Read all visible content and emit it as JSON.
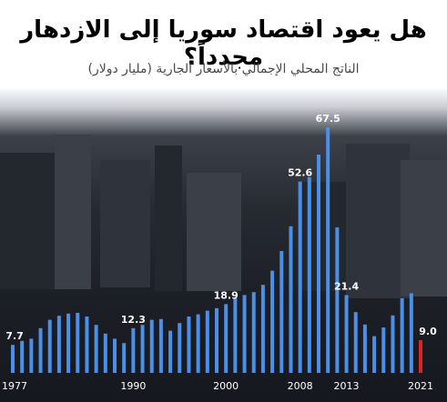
{
  "title": "هل يعود اقتصاد سوريا إلى الازدهار مجدداً؟",
  "subtitle": "الناتج المحلي الإجمالي بالأسعار الجارية (مليار دولار)",
  "colors": {
    "bar": "#4a8fe8",
    "highlight": "#e02424",
    "text": "#ffffff"
  },
  "chart_data": {
    "type": "bar",
    "title": "هل يعود اقتصاد سوريا إلى الازدهار مجدداً؟",
    "subtitle": "الناتج المحلي الإجمالي بالأسعار الجارية (مليار دولار)",
    "xlabel": "",
    "ylabel": "",
    "ylim": [
      0,
      70
    ],
    "grid": false,
    "x": [
      1977,
      1978,
      1979,
      1980,
      1981,
      1982,
      1983,
      1984,
      1985,
      1986,
      1987,
      1988,
      1989,
      1990,
      1991,
      1992,
      1993,
      1994,
      1995,
      1996,
      1997,
      1998,
      1999,
      2000,
      2001,
      2002,
      2003,
      2004,
      2005,
      2006,
      2007,
      2008,
      2009,
      2010,
      2011,
      2012,
      2013,
      2014,
      2015,
      2016,
      2017,
      2018,
      2019,
      2020,
      2021
    ],
    "values": [
      7.7,
      8.8,
      9.4,
      12.3,
      14.6,
      15.7,
      16.3,
      16.5,
      15.5,
      13.2,
      10.8,
      9.4,
      8.2,
      12.3,
      13.2,
      14.6,
      14.8,
      11.6,
      13.7,
      15.5,
      16.1,
      17.1,
      17.8,
      18.9,
      20.5,
      21.4,
      22.2,
      24.2,
      28.1,
      33.5,
      40.3,
      52.6,
      53.8,
      60.0,
      67.5,
      40.0,
      21.4,
      16.7,
      13.3,
      10.1,
      12.5,
      15.8,
      20.5,
      21.9,
      9.0
    ],
    "highlight_index": 44,
    "data_labels": [
      {
        "index": 0,
        "text": "7.7"
      },
      {
        "index": 13,
        "text": "12.3"
      },
      {
        "index": 23,
        "text": "18.9"
      },
      {
        "index": 31,
        "text": "52.6"
      },
      {
        "index": 34,
        "text": "67.5"
      },
      {
        "index": 36,
        "text": "21.4"
      },
      {
        "index": 44,
        "text": "9.0"
      }
    ],
    "tick_labels": [
      {
        "index": 0,
        "text": "1977"
      },
      {
        "index": 13,
        "text": "1990"
      },
      {
        "index": 23,
        "text": "2000"
      },
      {
        "index": 31,
        "text": "2008"
      },
      {
        "index": 36,
        "text": "2013"
      },
      {
        "index": 44,
        "text": "2021"
      }
    ]
  }
}
